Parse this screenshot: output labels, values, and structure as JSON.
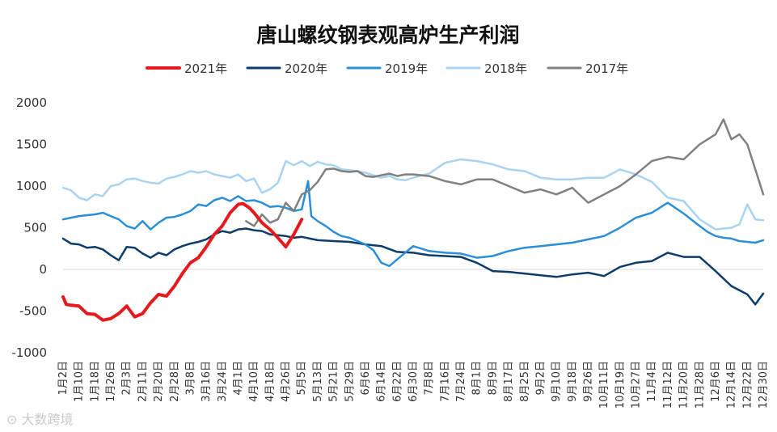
{
  "chart_data": {
    "type": "line",
    "title": "唐山螺纹钢表观高炉生产利润",
    "xlabel": "",
    "ylabel": "",
    "ylim": [
      -1000,
      2000
    ],
    "yticks": [
      2000,
      1500,
      1000,
      500,
      0,
      -500,
      -1000
    ],
    "grid": false,
    "legend_position": "top",
    "x_ticks": [
      "1月2日",
      "1月10日",
      "1月18日",
      "1月26日",
      "2月3日",
      "2月11日",
      "2月20日",
      "2月28日",
      "3月8日",
      "3月16日",
      "3月24日",
      "4月1日",
      "4月10日",
      "4月18日",
      "4月26日",
      "5月5日",
      "5月13日",
      "5月21日",
      "5月29日",
      "6月6日",
      "6月14日",
      "6月22日",
      "6月30日",
      "7月8日",
      "7月16日",
      "7月24日",
      "8月1日",
      "8月9日",
      "8月17日",
      "8月25日",
      "9月2日",
      "9月10日",
      "9月18日",
      "9月26日",
      "10月11日",
      "10月19日",
      "10月27日",
      "11月4日",
      "11月12日",
      "11月20日",
      "11月28日",
      "12月6日",
      "12月14日",
      "12月22日",
      "12月30日"
    ],
    "x_unit": "tick index (0 = 1月2日, 44 = 12月30日)",
    "series": [
      {
        "name": "2021年",
        "color": "#e41a1c",
        "width": 4,
        "x": [
          0,
          0.2,
          0.5,
          1,
          1.5,
          2,
          2.5,
          3,
          3.5,
          4,
          4.5,
          5,
          5.5,
          6,
          6.5,
          7,
          7.5,
          8,
          8.5,
          9,
          9.5,
          10,
          10.5,
          11,
          11.3,
          11.7,
          12,
          12.5,
          13,
          13.5,
          14,
          14.5,
          15
        ],
        "y": [
          -330,
          -420,
          -430,
          -440,
          -530,
          -540,
          -610,
          -590,
          -530,
          -440,
          -570,
          -530,
          -400,
          -300,
          -320,
          -200,
          -50,
          80,
          140,
          270,
          420,
          520,
          680,
          780,
          790,
          740,
          680,
          560,
          480,
          380,
          270,
          420,
          600
        ]
      },
      {
        "name": "2020年",
        "color": "#0d3c6b",
        "width": 2.5,
        "x": [
          0,
          0.5,
          1,
          1.5,
          2,
          2.5,
          3,
          3.5,
          4,
          4.5,
          5,
          5.5,
          6,
          6.5,
          7,
          7.5,
          8,
          8.5,
          9,
          9.5,
          10,
          10.5,
          11,
          11.5,
          12,
          12.5,
          13,
          13.5,
          14,
          14.5,
          15,
          16,
          17,
          18,
          19,
          20,
          21,
          22,
          23,
          24,
          25,
          26,
          27,
          28,
          29,
          30,
          31,
          32,
          33,
          34,
          35,
          36,
          37,
          38,
          39,
          40,
          41,
          42,
          43,
          43.5,
          44
        ],
        "y": [
          370,
          310,
          300,
          260,
          270,
          240,
          170,
          110,
          270,
          260,
          190,
          140,
          200,
          170,
          240,
          280,
          310,
          330,
          360,
          420,
          460,
          440,
          480,
          490,
          470,
          460,
          420,
          410,
          400,
          380,
          390,
          350,
          340,
          330,
          300,
          280,
          210,
          200,
          170,
          160,
          150,
          80,
          -20,
          -30,
          -50,
          -70,
          -90,
          -60,
          -40,
          -80,
          30,
          80,
          100,
          200,
          150,
          150,
          -20,
          -200,
          -300,
          -420,
          -290
        ]
      },
      {
        "name": "2019年",
        "color": "#2b8ed8",
        "width": 2.5,
        "x": [
          0,
          0.5,
          1,
          1.5,
          2,
          2.5,
          3,
          3.5,
          4,
          4.5,
          5,
          5.5,
          6,
          6.5,
          7,
          7.5,
          8,
          8.5,
          9,
          9.5,
          10,
          10.5,
          11,
          11.5,
          12,
          12.5,
          13,
          13.5,
          14,
          14.5,
          15,
          15.4,
          15.6,
          16,
          16.5,
          17,
          17.5,
          18,
          18.5,
          19,
          19.5,
          20,
          20.5,
          21,
          21.5,
          22,
          23,
          24,
          25,
          26,
          27,
          28,
          29,
          30,
          31,
          32,
          33,
          34,
          35,
          36,
          37,
          38,
          39,
          40,
          40.5,
          41,
          41.5,
          42,
          42.5,
          43,
          43.5,
          44
        ],
        "y": [
          600,
          620,
          640,
          650,
          660,
          680,
          640,
          600,
          520,
          490,
          580,
          480,
          560,
          620,
          630,
          660,
          700,
          780,
          760,
          830,
          860,
          820,
          880,
          820,
          830,
          800,
          750,
          760,
          740,
          700,
          720,
          1060,
          640,
          580,
          520,
          450,
          400,
          380,
          340,
          300,
          230,
          80,
          40,
          120,
          200,
          280,
          220,
          200,
          190,
          140,
          160,
          220,
          260,
          280,
          300,
          320,
          360,
          400,
          500,
          620,
          680,
          800,
          670,
          520,
          450,
          400,
          380,
          370,
          340,
          330,
          320,
          350
        ]
      },
      {
        "name": "2018年",
        "color": "#a9d3f0",
        "width": 2.5,
        "x": [
          0,
          0.5,
          1,
          1.5,
          2,
          2.5,
          3,
          3.5,
          4,
          4.5,
          5,
          5.5,
          6,
          6.5,
          7,
          7.5,
          8,
          8.5,
          9,
          9.5,
          10,
          10.5,
          11,
          11.5,
          12,
          12.5,
          13,
          13.5,
          14,
          14.5,
          15,
          15.5,
          16,
          16.5,
          17,
          17.5,
          18,
          18.5,
          19,
          19.5,
          20,
          20.5,
          21,
          21.5,
          22,
          23,
          24,
          25,
          26,
          27,
          28,
          29,
          30,
          31,
          32,
          33,
          34,
          35,
          36,
          37,
          38,
          39,
          40,
          41,
          42,
          42.5,
          43,
          43.5,
          44
        ],
        "y": [
          980,
          950,
          860,
          830,
          900,
          880,
          1000,
          1020,
          1080,
          1090,
          1060,
          1040,
          1030,
          1090,
          1110,
          1140,
          1180,
          1160,
          1180,
          1140,
          1120,
          1100,
          1140,
          1060,
          1090,
          920,
          960,
          1040,
          1300,
          1250,
          1300,
          1240,
          1290,
          1260,
          1250,
          1200,
          1190,
          1180,
          1160,
          1130,
          1100,
          1120,
          1080,
          1070,
          1100,
          1150,
          1280,
          1320,
          1300,
          1260,
          1200,
          1180,
          1100,
          1080,
          1080,
          1100,
          1100,
          1200,
          1140,
          1050,
          860,
          820,
          600,
          480,
          500,
          540,
          780,
          600,
          590
        ]
      },
      {
        "name": "2017年",
        "color": "#808080",
        "width": 2.5,
        "x": [
          11.5,
          12,
          12.5,
          13,
          13.5,
          14,
          14.5,
          15,
          15.5,
          16,
          16.5,
          17,
          17.5,
          18,
          18.5,
          19,
          19.5,
          20,
          20.5,
          21,
          21.5,
          22,
          23,
          24,
          25,
          26,
          27,
          28,
          29,
          30,
          31,
          32,
          33,
          34,
          35,
          36,
          37,
          38,
          39,
          40,
          40.5,
          41,
          41.5,
          42,
          42.5,
          43,
          43.5,
          44
        ],
        "y": [
          580,
          520,
          660,
          560,
          600,
          800,
          700,
          900,
          950,
          1050,
          1200,
          1210,
          1180,
          1170,
          1180,
          1120,
          1110,
          1130,
          1150,
          1120,
          1140,
          1140,
          1120,
          1060,
          1020,
          1080,
          1080,
          1000,
          920,
          960,
          900,
          980,
          800,
          900,
          1000,
          1140,
          1300,
          1350,
          1320,
          1500,
          1560,
          1620,
          1800,
          1560,
          1620,
          1500,
          1200,
          900
        ]
      }
    ]
  },
  "watermark": "大数跨境"
}
